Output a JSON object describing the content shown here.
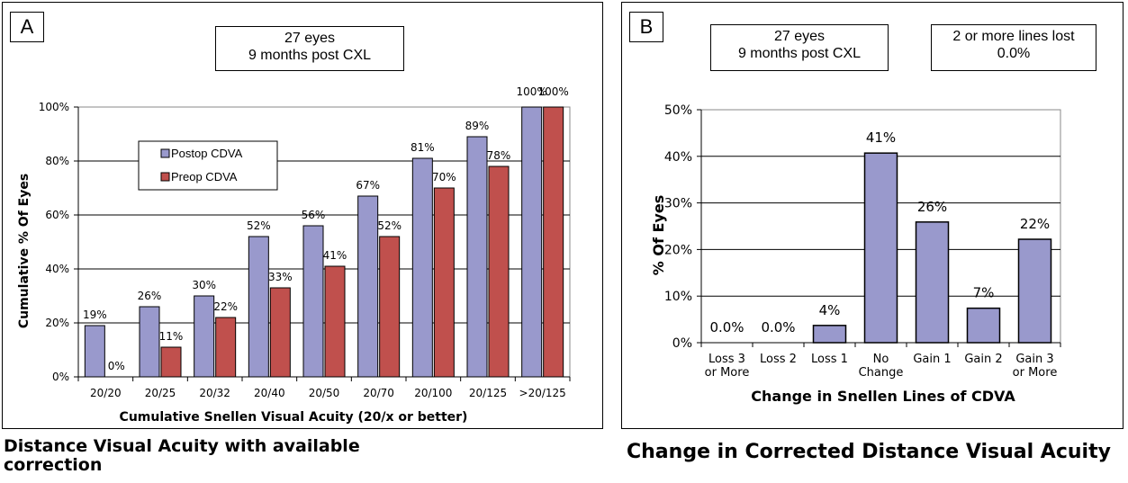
{
  "panel_a": {
    "letter": "A",
    "info_line1": "27 eyes",
    "info_line2": "9 months post CXL",
    "caption_line1": "Distance Visual Acuity with available",
    "caption_line2": "correction"
  },
  "panel_b": {
    "letter": "B",
    "info_line1": "27 eyes",
    "info_line2": "9 months post CXL",
    "loss_line1": "2 or more lines lost",
    "loss_line2": "0.0%",
    "caption": "Change in Corrected Distance Visual Acuity"
  },
  "chart_data": [
    {
      "type": "bar",
      "title": "",
      "xlabel": "Cumulative Snellen Visual Acuity (20/x or better)",
      "ylabel": "Cumulative % Of Eyes",
      "ylim": [
        0,
        100
      ],
      "yticks": [
        "0%",
        "20%",
        "40%",
        "60%",
        "80%",
        "100%"
      ],
      "ytick_values": [
        0,
        20,
        40,
        60,
        80,
        100
      ],
      "grid": true,
      "legend": "top-left",
      "categories": [
        "20/20",
        "20/25",
        "20/32",
        "20/40",
        "20/50",
        "20/70",
        "20/100",
        "20/125",
        ">20/125"
      ],
      "series": [
        {
          "name": "Postop CDVA",
          "color": "#9999cc",
          "values": [
            19,
            26,
            30,
            52,
            56,
            67,
            81,
            89,
            100
          ],
          "labels": [
            "19%",
            "26%",
            "30%",
            "52%",
            "56%",
            "67%",
            "81%",
            "89%",
            "100%"
          ]
        },
        {
          "name": "Preop CDVA",
          "color": "#c0504d",
          "values": [
            0,
            11,
            22,
            33,
            41,
            52,
            70,
            78,
            100
          ],
          "labels": [
            "0%",
            "11%",
            "22%",
            "33%",
            "41%",
            "52%",
            "70%",
            "78%",
            "100%"
          ]
        }
      ]
    },
    {
      "type": "bar",
      "title": "",
      "xlabel": "Change in Snellen Lines of CDVA",
      "ylabel": "% Of Eyes",
      "ylim": [
        0,
        50
      ],
      "yticks": [
        "0%",
        "10%",
        "20%",
        "30%",
        "40%",
        "50%"
      ],
      "ytick_values": [
        0,
        10,
        20,
        30,
        40,
        50
      ],
      "grid": true,
      "categories": [
        [
          "Loss 3",
          "or More"
        ],
        [
          "Loss 2"
        ],
        [
          "Loss 1"
        ],
        [
          "No",
          "Change"
        ],
        [
          "Gain 1"
        ],
        [
          "Gain 2"
        ],
        [
          "Gain 3",
          "or More"
        ]
      ],
      "series": [
        {
          "color": "#9999cc",
          "values": [
            0,
            0,
            3.7,
            40.7,
            25.9,
            7.4,
            22.2
          ],
          "labels": [
            "0.0%",
            "0.0%",
            "4%",
            "41%",
            "26%",
            "7%",
            "22%"
          ]
        }
      ]
    }
  ]
}
